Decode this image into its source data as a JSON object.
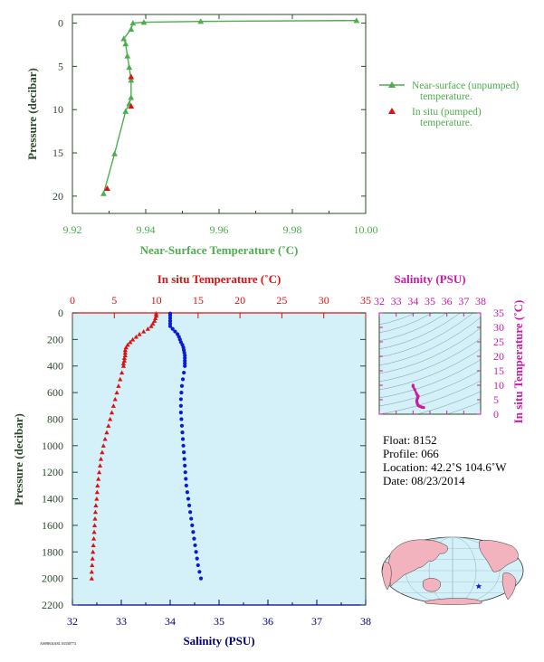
{
  "colors": {
    "green": "#4cae4c",
    "red": "#dd1111",
    "blue": "#0a1ad6",
    "navy": "#000080",
    "magenta": "#cc1aa6",
    "darkgreen": "#2d4a2d",
    "panel_bg": "#d4f0f8"
  },
  "chart_data": [
    {
      "type": "line",
      "xlabel": "Near-Surface Temperature (˚C)",
      "ylabel": "Pressure (decibar)",
      "xlim": [
        9.92,
        10.0
      ],
      "ylim": [
        22,
        -1
      ],
      "xticks": [
        "9.92",
        "9.94",
        "9.96",
        "9.98",
        "10.00"
      ],
      "yticks": [
        "0",
        "5",
        "10",
        "15",
        "20"
      ],
      "legend_position": "right",
      "series": [
        {
          "name": "Near-surface (unpumped) temperature.",
          "x": [
            9.9975,
            9.955,
            9.9395,
            9.9365,
            9.936,
            9.934,
            9.9345,
            9.935,
            9.9355,
            9.936,
            9.936,
            9.9355,
            9.9345,
            9.9315,
            9.9285
          ],
          "y": [
            -0.3,
            -0.2,
            -0.1,
            0.0,
            0.7,
            1.8,
            2.4,
            3.8,
            5.1,
            6.6,
            8.6,
            9.3,
            10.2,
            15.1,
            19.7
          ]
        },
        {
          "name": "In situ (pumped) temperature.",
          "x": [
            9.936,
            9.936,
            9.9295
          ],
          "y": [
            6.2,
            9.6,
            19.1
          ]
        }
      ]
    },
    {
      "type": "scatter",
      "xlabel_bottom": "Salinity (PSU)",
      "xlabel_top": "In situ Temperature (˚C)",
      "ylabel": "Pressure (decibar)",
      "salinity_lim": [
        32,
        38
      ],
      "temperature_lim": [
        0,
        35
      ],
      "ylim": [
        2200,
        0
      ],
      "salinity_ticks": [
        "32",
        "33",
        "34",
        "35",
        "36",
        "37",
        "38"
      ],
      "temperature_ticks": [
        "0",
        "5",
        "10",
        "15",
        "20",
        "25",
        "30",
        "35"
      ],
      "pressure_ticks": [
        "0",
        "200",
        "400",
        "600",
        "800",
        "1000",
        "1200",
        "1400",
        "1600",
        "1800",
        "2000",
        "2200"
      ],
      "series": [
        {
          "name": "Temperature",
          "pressure": [
            5,
            20,
            40,
            60,
            80,
            100,
            120,
            140,
            160,
            180,
            200,
            220,
            240,
            260,
            280,
            300,
            320,
            340,
            360,
            380,
            400,
            450,
            500,
            550,
            600,
            650,
            700,
            750,
            800,
            850,
            900,
            950,
            1000,
            1050,
            1100,
            1150,
            1200,
            1250,
            1300,
            1350,
            1400,
            1450,
            1500,
            1550,
            1600,
            1650,
            1700,
            1750,
            1800,
            1850,
            1900,
            1950,
            2000
          ],
          "values": [
            10.0,
            10.0,
            9.9,
            9.8,
            9.6,
            9.4,
            9.0,
            8.5,
            8.0,
            7.6,
            7.2,
            6.9,
            6.6,
            6.4,
            6.3,
            6.3,
            6.3,
            6.2,
            6.2,
            6.1,
            6.1,
            5.9,
            5.7,
            5.5,
            5.3,
            5.1,
            4.9,
            4.7,
            4.5,
            4.3,
            4.1,
            3.9,
            3.7,
            3.55,
            3.4,
            3.3,
            3.2,
            3.1,
            3.0,
            2.95,
            2.9,
            2.8,
            2.75,
            2.7,
            2.65,
            2.6,
            2.55,
            2.5,
            2.45,
            2.4,
            2.35,
            2.3,
            2.3
          ]
        },
        {
          "name": "Salinity",
          "pressure": [
            5,
            20,
            40,
            60,
            80,
            100,
            120,
            140,
            160,
            180,
            200,
            220,
            240,
            260,
            280,
            300,
            320,
            340,
            360,
            380,
            400,
            450,
            500,
            550,
            600,
            650,
            700,
            750,
            800,
            850,
            900,
            950,
            1000,
            1050,
            1100,
            1150,
            1200,
            1250,
            1300,
            1350,
            1400,
            1450,
            1500,
            1550,
            1600,
            1650,
            1700,
            1750,
            1800,
            1850,
            1900,
            1950,
            2000
          ],
          "values": [
            34.0,
            34.0,
            34.0,
            34.0,
            34.0,
            34.0,
            34.05,
            34.1,
            34.15,
            34.18,
            34.2,
            34.22,
            34.25,
            34.27,
            34.28,
            34.29,
            34.3,
            34.3,
            34.3,
            34.3,
            34.3,
            34.28,
            34.26,
            34.24,
            34.23,
            34.22,
            34.22,
            34.22,
            34.23,
            34.24,
            34.25,
            34.26,
            34.27,
            34.28,
            34.29,
            34.3,
            34.31,
            34.32,
            34.33,
            34.35,
            34.37,
            34.39,
            34.41,
            34.43,
            34.45,
            34.47,
            34.49,
            34.51,
            34.53,
            34.55,
            34.57,
            34.6,
            34.63
          ]
        }
      ]
    },
    {
      "type": "scatter",
      "title": "Salinity (PSU)",
      "xlabel": "Salinity (PSU)",
      "ylabel": "In situ Temperature (˚C)",
      "xlim": [
        32,
        38
      ],
      "ylim": [
        0,
        35
      ],
      "xticks": [
        "32",
        "33",
        "34",
        "35",
        "36",
        "37",
        "38"
      ],
      "yticks": [
        "0",
        "5",
        "10",
        "15",
        "20",
        "25",
        "30",
        "35"
      ],
      "series": [
        {
          "name": "T-S",
          "x": [
            34.0,
            34.0,
            34.1,
            34.2,
            34.25,
            34.28,
            34.3,
            34.3,
            34.3,
            34.28,
            34.25,
            34.22,
            34.22,
            34.23,
            34.25,
            34.27,
            34.29,
            34.31,
            34.33,
            34.37,
            34.41,
            34.45,
            34.49,
            34.53,
            34.57,
            34.63
          ],
          "y": [
            10.0,
            9.6,
            8.5,
            7.2,
            6.6,
            6.3,
            6.3,
            6.2,
            6.1,
            5.7,
            5.3,
            4.9,
            4.5,
            4.1,
            3.7,
            3.4,
            3.2,
            3.0,
            2.9,
            2.8,
            2.7,
            2.6,
            2.5,
            2.4,
            2.35,
            2.3
          ]
        }
      ]
    }
  ],
  "info": {
    "float": "Float:  8152",
    "profile": "Profile:  066",
    "location": "Location:  42.2˚S  104.6˚W",
    "date": "Date:  08/23/2014"
  },
  "footer": {
    "stamp": "AS09E04A8L 03330774"
  },
  "map": {
    "marker_lat": -42.2,
    "marker_lon": -104.6
  }
}
